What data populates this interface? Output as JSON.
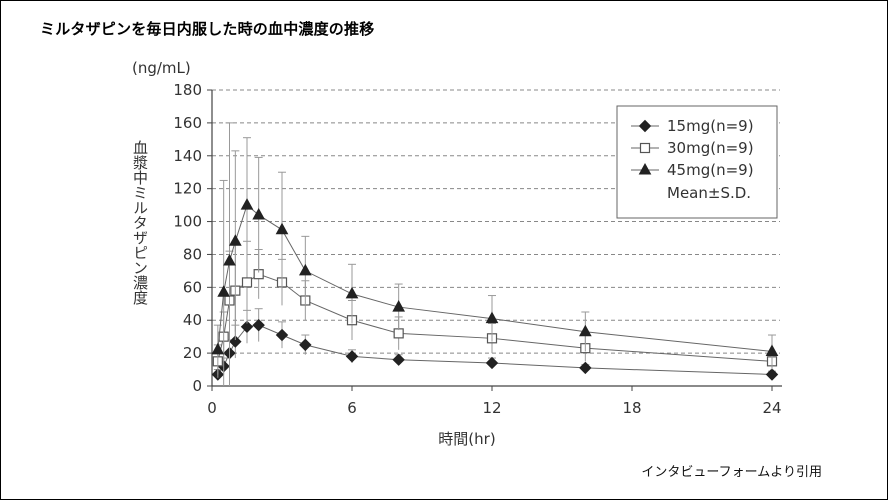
{
  "header": {
    "title": "ミルタザピンを毎日内服した時の血中濃度の推移"
  },
  "footer": {
    "source": "インタビューフォームより引用"
  },
  "chart_data": {
    "type": "line",
    "xlabel": "時間(hr)",
    "ylabel": "血漿中ミルタザピン濃度",
    "yunit": "(ng/mL)",
    "xlim": [
      0,
      24
    ],
    "ylim": [
      0,
      180
    ],
    "xticks": [
      0,
      6,
      12,
      18,
      24
    ],
    "yticks": [
      0,
      20,
      40,
      60,
      80,
      100,
      120,
      140,
      160,
      180
    ],
    "grid": "horizontal dashed",
    "legend_position": "top-right",
    "legend_note": "Mean±S.D.",
    "series": [
      {
        "name": "15mg(n=9)",
        "marker": "diamond",
        "color": "#222222",
        "x": [
          0.25,
          0.5,
          0.75,
          1,
          1.5,
          2,
          3,
          4,
          6,
          8,
          12,
          16,
          24
        ],
        "y": [
          7,
          12,
          20,
          27,
          36,
          37,
          31,
          25,
          18,
          16,
          14,
          11,
          7
        ],
        "sd": [
          3,
          5,
          8,
          10,
          10,
          10,
          8,
          6,
          4,
          3,
          3,
          2,
          2
        ]
      },
      {
        "name": "30mg(n=9)",
        "marker": "square-open",
        "color": "#333333",
        "x": [
          0.25,
          0.5,
          0.75,
          1,
          1.5,
          2,
          3,
          4,
          6,
          8,
          12,
          16,
          24
        ],
        "y": [
          15,
          30,
          52,
          58,
          63,
          68,
          63,
          52,
          40,
          32,
          29,
          23,
          15
        ],
        "sd": [
          10,
          15,
          30,
          30,
          25,
          15,
          14,
          12,
          12,
          10,
          9,
          8,
          5
        ]
      },
      {
        "name": "45mg(n=9)",
        "marker": "triangle",
        "color": "#222222",
        "x": [
          0.25,
          0.5,
          0.75,
          1,
          1.5,
          2,
          3,
          4,
          6,
          8,
          12,
          16,
          24
        ],
        "y": [
          22,
          57,
          76,
          88,
          110,
          104,
          95,
          70,
          56,
          48,
          41,
          33,
          21
        ],
        "sd": [
          15,
          68,
          84,
          55,
          41,
          35,
          35,
          21,
          18,
          14,
          14,
          12,
          10
        ]
      }
    ]
  }
}
